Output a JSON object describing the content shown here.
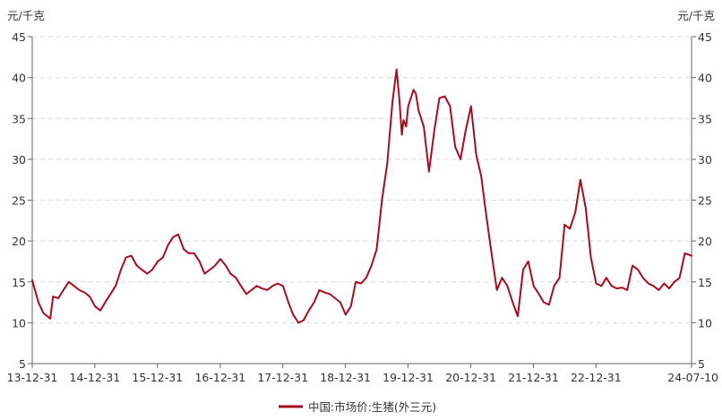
{
  "chart_data": {
    "type": "line",
    "unit_left": "元/千克",
    "unit_right": "元/千克",
    "ylim": [
      5,
      45
    ],
    "y_ticks": [
      "5",
      "10",
      "15",
      "20",
      "25",
      "30",
      "35",
      "40",
      "45"
    ],
    "x_tick_labels": [
      "13-12-31",
      "14-12-31",
      "15-12-31",
      "16-12-31",
      "17-12-31",
      "18-12-31",
      "19-12-31",
      "20-12-31",
      "21-12-31",
      "22-12-31",
      "24-07-10"
    ],
    "x_tick_dates": [
      "2013-12-31",
      "2014-12-31",
      "2015-12-31",
      "2016-12-31",
      "2017-12-31",
      "2018-12-31",
      "2019-12-31",
      "2020-12-31",
      "2021-12-31",
      "2022-12-31",
      "2024-07-10"
    ],
    "grid": "horizontal dashed",
    "legend_position": "bottom-center",
    "series": [
      {
        "name": "中国:市场价:生猪(外三元)",
        "color": "#a50d1f",
        "points": [
          [
            "2013-12-31",
            15.2
          ],
          [
            "2014-02-05",
            12.5
          ],
          [
            "2014-03-05",
            11.2
          ],
          [
            "2014-04-15",
            10.5
          ],
          [
            "2014-05-01",
            13.2
          ],
          [
            "2014-06-01",
            13.0
          ],
          [
            "2014-07-01",
            14.0
          ],
          [
            "2014-08-01",
            15.0
          ],
          [
            "2014-09-01",
            14.5
          ],
          [
            "2014-10-01",
            14.0
          ],
          [
            "2014-11-01",
            13.7
          ],
          [
            "2014-12-01",
            13.2
          ],
          [
            "2015-01-01",
            12.0
          ],
          [
            "2015-02-01",
            11.5
          ],
          [
            "2015-03-01",
            12.5
          ],
          [
            "2015-04-01",
            13.5
          ],
          [
            "2015-05-01",
            14.5
          ],
          [
            "2015-06-01",
            16.5
          ],
          [
            "2015-07-01",
            18.0
          ],
          [
            "2015-08-01",
            18.2
          ],
          [
            "2015-09-01",
            17.0
          ],
          [
            "2015-10-01",
            16.5
          ],
          [
            "2015-11-01",
            16.0
          ],
          [
            "2015-12-01",
            16.5
          ],
          [
            "2016-01-01",
            17.5
          ],
          [
            "2016-02-01",
            18.0
          ],
          [
            "2016-03-01",
            19.5
          ],
          [
            "2016-04-01",
            20.5
          ],
          [
            "2016-05-01",
            20.8
          ],
          [
            "2016-06-01",
            19.0
          ],
          [
            "2016-07-01",
            18.5
          ],
          [
            "2016-08-01",
            18.5
          ],
          [
            "2016-09-01",
            17.5
          ],
          [
            "2016-10-01",
            16.0
          ],
          [
            "2016-11-01",
            16.5
          ],
          [
            "2016-12-01",
            17.0
          ],
          [
            "2017-01-01",
            17.8
          ],
          [
            "2017-02-01",
            17.0
          ],
          [
            "2017-03-01",
            16.0
          ],
          [
            "2017-04-01",
            15.5
          ],
          [
            "2017-05-01",
            14.5
          ],
          [
            "2017-06-01",
            13.5
          ],
          [
            "2017-07-01",
            14.0
          ],
          [
            "2017-08-01",
            14.5
          ],
          [
            "2017-09-01",
            14.2
          ],
          [
            "2017-10-01",
            14.0
          ],
          [
            "2017-11-01",
            14.5
          ],
          [
            "2017-12-01",
            14.8
          ],
          [
            "2018-01-01",
            14.5
          ],
          [
            "2018-02-01",
            12.5
          ],
          [
            "2018-03-01",
            11.0
          ],
          [
            "2018-04-01",
            10.0
          ],
          [
            "2018-05-01",
            10.3
          ],
          [
            "2018-06-01",
            11.5
          ],
          [
            "2018-07-01",
            12.5
          ],
          [
            "2018-08-01",
            14.0
          ],
          [
            "2018-09-01",
            13.7
          ],
          [
            "2018-10-01",
            13.5
          ],
          [
            "2018-11-01",
            13.0
          ],
          [
            "2018-12-01",
            12.5
          ],
          [
            "2019-01-01",
            11.0
          ],
          [
            "2019-02-01",
            12.0
          ],
          [
            "2019-03-01",
            15.0
          ],
          [
            "2019-04-01",
            14.8
          ],
          [
            "2019-05-01",
            15.5
          ],
          [
            "2019-06-01",
            17.0
          ],
          [
            "2019-07-01",
            19.0
          ],
          [
            "2019-08-01",
            25.0
          ],
          [
            "2019-09-01",
            29.5
          ],
          [
            "2019-10-01",
            37.0
          ],
          [
            "2019-10-25",
            41.0
          ],
          [
            "2019-11-10",
            37.5
          ],
          [
            "2019-11-25",
            33.0
          ],
          [
            "2019-12-05",
            34.8
          ],
          [
            "2019-12-20",
            34.0
          ],
          [
            "2020-01-01",
            36.5
          ],
          [
            "2020-02-01",
            38.5
          ],
          [
            "2020-02-15",
            38.0
          ],
          [
            "2020-03-01",
            36.0
          ],
          [
            "2020-04-01",
            34.0
          ],
          [
            "2020-05-01",
            28.5
          ],
          [
            "2020-06-01",
            33.5
          ],
          [
            "2020-07-01",
            37.5
          ],
          [
            "2020-08-01",
            37.7
          ],
          [
            "2020-09-01",
            36.5
          ],
          [
            "2020-10-01",
            31.5
          ],
          [
            "2020-11-01",
            30.0
          ],
          [
            "2020-12-01",
            33.5
          ],
          [
            "2021-01-01",
            36.5
          ],
          [
            "2021-02-01",
            30.5
          ],
          [
            "2021-03-01",
            28.0
          ],
          [
            "2021-04-01",
            23.0
          ],
          [
            "2021-05-01",
            18.5
          ],
          [
            "2021-06-01",
            14.0
          ],
          [
            "2021-07-01",
            15.5
          ],
          [
            "2021-08-01",
            14.5
          ],
          [
            "2021-09-01",
            12.5
          ],
          [
            "2021-10-01",
            10.8
          ],
          [
            "2021-11-01",
            16.5
          ],
          [
            "2021-12-01",
            17.5
          ],
          [
            "2022-01-01",
            14.5
          ],
          [
            "2022-02-01",
            13.5
          ],
          [
            "2022-03-01",
            12.5
          ],
          [
            "2022-04-01",
            12.2
          ],
          [
            "2022-05-01",
            14.5
          ],
          [
            "2022-06-01",
            15.5
          ],
          [
            "2022-07-01",
            22.0
          ],
          [
            "2022-08-01",
            21.5
          ],
          [
            "2022-09-01",
            23.5
          ],
          [
            "2022-10-01",
            27.5
          ],
          [
            "2022-11-01",
            24.0
          ],
          [
            "2022-12-01",
            18.0
          ],
          [
            "2023-01-01",
            14.8
          ],
          [
            "2023-02-01",
            14.5
          ],
          [
            "2023-03-01",
            15.5
          ],
          [
            "2023-04-01",
            14.5
          ],
          [
            "2023-05-01",
            14.2
          ],
          [
            "2023-06-01",
            14.3
          ],
          [
            "2023-07-01",
            14.0
          ],
          [
            "2023-08-01",
            17.0
          ],
          [
            "2023-09-01",
            16.5
          ],
          [
            "2023-10-01",
            15.5
          ],
          [
            "2023-11-01",
            14.8
          ],
          [
            "2023-12-01",
            14.5
          ],
          [
            "2024-01-01",
            14.0
          ],
          [
            "2024-02-01",
            14.8
          ],
          [
            "2024-03-01",
            14.2
          ],
          [
            "2024-04-01",
            15.0
          ],
          [
            "2024-05-01",
            15.5
          ],
          [
            "2024-06-01",
            18.5
          ],
          [
            "2024-07-10",
            18.2
          ]
        ]
      }
    ]
  }
}
